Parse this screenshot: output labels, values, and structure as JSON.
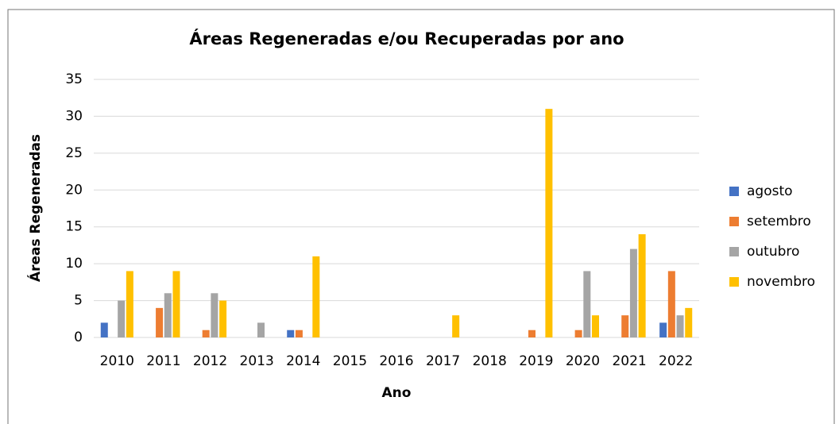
{
  "chart_data": {
    "type": "bar",
    "title": "Áreas Regeneradas e/ou Recuperadas por ano",
    "y_label": "Áreas Regeneradas",
    "x_label": "Ano",
    "categories": [
      "2010",
      "2011",
      "2012",
      "2013",
      "2014",
      "2015",
      "2016",
      "2017",
      "2018",
      "2019",
      "2020",
      "2021",
      "2022"
    ],
    "series": [
      {
        "name": "agosto",
        "color": "#4472c4",
        "values": [
          2,
          0,
          0,
          0,
          1,
          0,
          0,
          0,
          0,
          0,
          0,
          0,
          2
        ]
      },
      {
        "name": "setembro",
        "color": "#ed7d31",
        "values": [
          0,
          4,
          1,
          0,
          1,
          0,
          0,
          0,
          0,
          1,
          1,
          3,
          9
        ]
      },
      {
        "name": "outubro",
        "color": "#a5a5a5",
        "values": [
          5,
          6,
          6,
          2,
          0,
          0,
          0,
          0,
          0,
          0,
          9,
          12,
          3
        ]
      },
      {
        "name": "novembro",
        "color": "#ffc000",
        "values": [
          9,
          9,
          5,
          0,
          11,
          0,
          0,
          3,
          0,
          31,
          3,
          14,
          4
        ]
      }
    ],
    "ylim": [
      0,
      35
    ],
    "yticks": [
      0,
      5,
      10,
      15,
      20,
      25,
      30,
      35
    ],
    "grid": true,
    "legend": "right"
  }
}
